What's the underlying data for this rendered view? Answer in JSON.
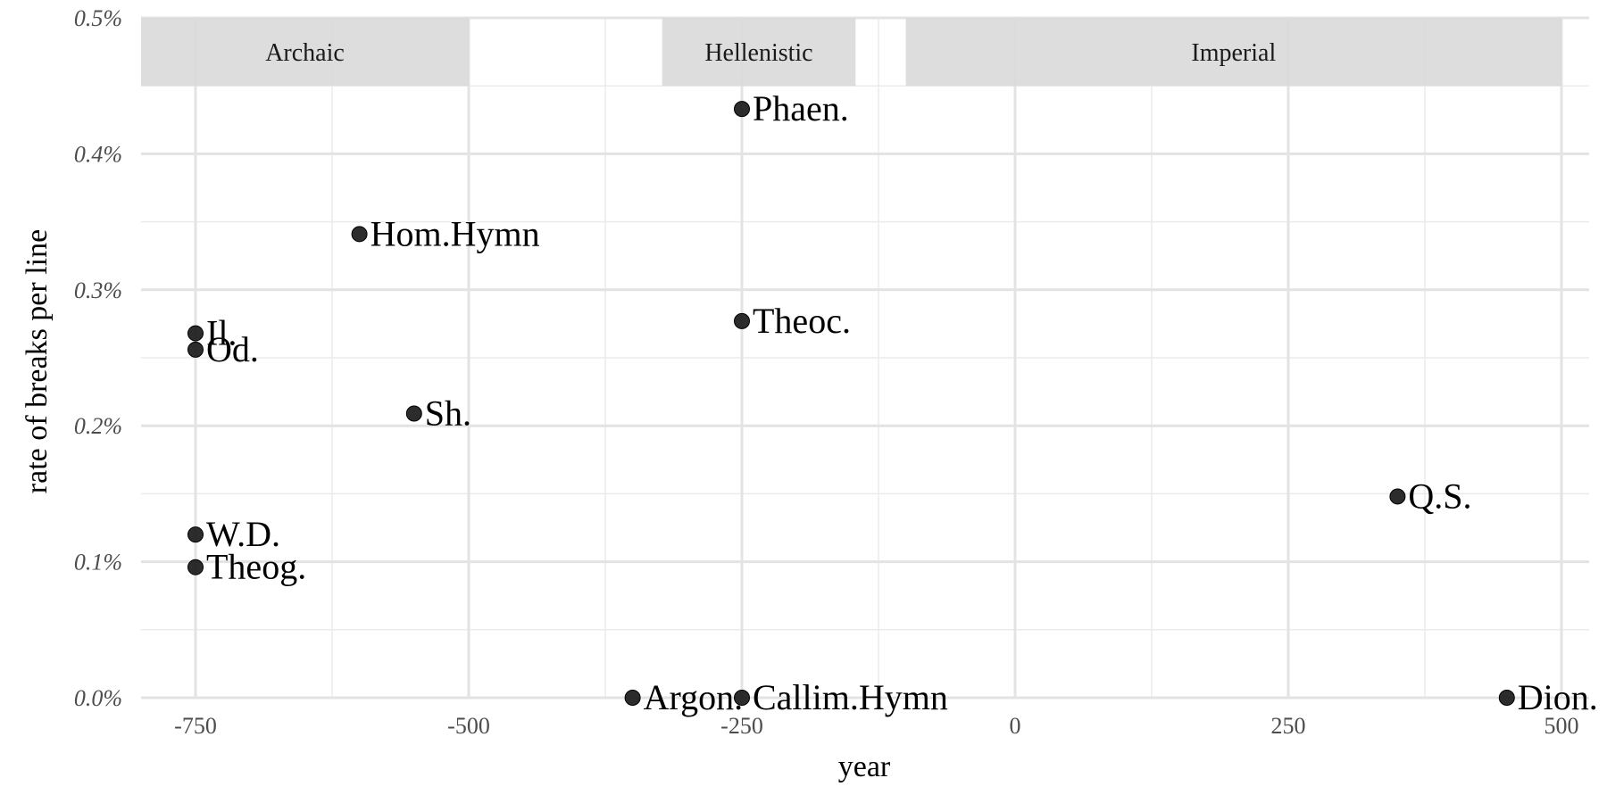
{
  "chart_data": {
    "type": "scatter",
    "xlabel": "year",
    "ylabel": "rate of breaks per line",
    "xlim": [
      -800,
      525
    ],
    "ylim": [
      0,
      0.5
    ],
    "x_ticks": [
      -750,
      -500,
      -250,
      0,
      250,
      500
    ],
    "x_tick_labels": [
      "-750",
      "-500",
      "-250",
      "0",
      "250",
      "500"
    ],
    "y_ticks": [
      0,
      0.1,
      0.2,
      0.3,
      0.4,
      0.5
    ],
    "y_tick_labels": [
      "0.0%",
      "0.1%",
      "0.2%",
      "0.3%",
      "0.4%",
      "0.5%"
    ],
    "grid": true,
    "periods": [
      {
        "label": "Archaic",
        "start": -800,
        "end": -500
      },
      {
        "label": "Hellenistic",
        "start": -323,
        "end": -146
      },
      {
        "label": "Imperial",
        "start": -100,
        "end": 500
      }
    ],
    "points": [
      {
        "label": "Il.",
        "x": -750,
        "y": 0.268
      },
      {
        "label": "Od.",
        "x": -750,
        "y": 0.256
      },
      {
        "label": "W.D.",
        "x": -750,
        "y": 0.12
      },
      {
        "label": "Theog.",
        "x": -750,
        "y": 0.096
      },
      {
        "label": "Hom.Hymn",
        "x": -600,
        "y": 0.341
      },
      {
        "label": "Sh.",
        "x": -550,
        "y": 0.209
      },
      {
        "label": "Argon.",
        "x": -350,
        "y": 0.0
      },
      {
        "label": "Phaen.",
        "x": -250,
        "y": 0.433
      },
      {
        "label": "Theoc.",
        "x": -250,
        "y": 0.277
      },
      {
        "label": "Callim.Hymn",
        "x": -250,
        "y": 0.0
      },
      {
        "label": "Q.S.",
        "x": 350,
        "y": 0.148
      },
      {
        "label": "Dion.",
        "x": 450,
        "y": 0.0
      }
    ]
  }
}
